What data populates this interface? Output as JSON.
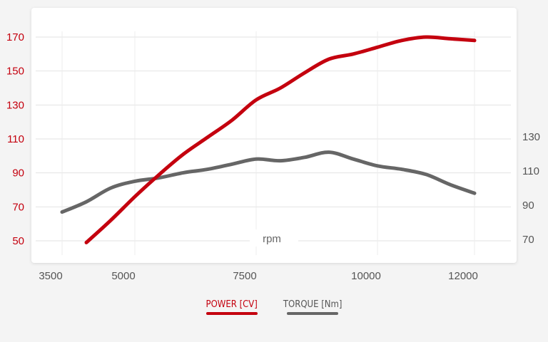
{
  "chart_data": {
    "type": "line",
    "xlabel": "rpm",
    "x_ticks": [
      "3500",
      "5000",
      "7500",
      "10000",
      "12000"
    ],
    "xlim": [
      3500,
      12000
    ],
    "left_axis": {
      "ticks": [
        "50",
        "70",
        "90",
        "110",
        "130",
        "150",
        "170"
      ],
      "ylim": [
        45,
        175
      ],
      "color": "#c4000e"
    },
    "right_axis": {
      "ticks": [
        "70",
        "90",
        "110",
        "130"
      ],
      "color": "#555555"
    },
    "series": [
      {
        "name": "POWER [CV]",
        "axis": "left",
        "color": "#c4000e",
        "x": [
          4000,
          4500,
          5000,
          5500,
          6000,
          6500,
          7000,
          7500,
          8000,
          8500,
          9000,
          9500,
          10000,
          10500,
          11000,
          11500,
          12000
        ],
        "values": [
          49,
          62,
          76,
          89,
          101,
          111,
          121,
          133,
          140,
          149,
          157,
          160,
          164,
          168,
          170,
          169,
          168
        ]
      },
      {
        "name": "TORQUE [Nm]",
        "axis": "right",
        "color": "#666666",
        "x": [
          3500,
          4000,
          4500,
          5000,
          5500,
          6000,
          6500,
          7000,
          7500,
          8000,
          8500,
          9000,
          9500,
          10000,
          10500,
          11000,
          11500,
          12000
        ],
        "values": [
          86,
          92,
          100,
          104,
          106,
          109,
          111,
          114,
          117,
          116,
          118,
          121,
          117,
          113,
          111,
          108,
          102,
          97
        ]
      }
    ],
    "grid": true,
    "legend_position": "bottom-center"
  }
}
